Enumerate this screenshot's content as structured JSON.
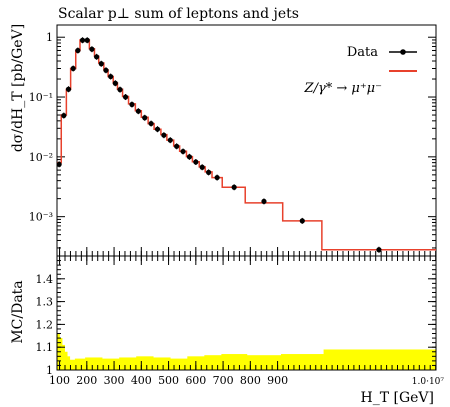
{
  "chart_data": [
    {
      "type": "line",
      "title": "Scalar p⊥ sum of leptons and jets",
      "ylabel": "dσ/dH_T [pb/GeV]",
      "xlabel": "",
      "yscale": "log",
      "ylim": [
        0.00022,
        1.6
      ],
      "xlim": [
        0.006,
        1.0
      ],
      "y_ticks": [
        {
          "value": 1,
          "label": "1"
        },
        {
          "value": 0.1,
          "label": "10⁻¹"
        },
        {
          "value": 0.01,
          "label": "10⁻²"
        },
        {
          "value": 0.001,
          "label": "10⁻³"
        }
      ],
      "legend": {
        "position": "top-right",
        "entries": [
          {
            "label": "Data",
            "color": "#000000",
            "marker": "point-with-error-line"
          },
          {
            "label": "",
            "color": "#e8412c",
            "marker": "line"
          }
        ]
      },
      "annotation": "Z/γ* → μ⁺μ⁻",
      "series": [
        {
          "name": "Data",
          "color": "#000000",
          "points": [
            {
              "x": 0.0095,
              "y": 0.0075
            },
            {
              "x": 0.015,
              "y": 0.049
            },
            {
              "x": 0.0205,
              "y": 0.135
            },
            {
              "x": 0.026,
              "y": 0.3
            },
            {
              "x": 0.0315,
              "y": 0.6
            },
            {
              "x": 0.037,
              "y": 0.89
            },
            {
              "x": 0.0425,
              "y": 0.89
            },
            {
              "x": 0.048,
              "y": 0.63
            },
            {
              "x": 0.0535,
              "y": 0.47
            },
            {
              "x": 0.059,
              "y": 0.36
            },
            {
              "x": 0.0645,
              "y": 0.28
            },
            {
              "x": 0.07,
              "y": 0.22
            },
            {
              "x": 0.0755,
              "y": 0.17
            },
            {
              "x": 0.081,
              "y": 0.133
            },
            {
              "x": 0.0875,
              "y": 0.1
            },
            {
              "x": 0.095,
              "y": 0.075
            },
            {
              "x": 0.1025,
              "y": 0.058
            },
            {
              "x": 0.11,
              "y": 0.045
            },
            {
              "x": 0.1175,
              "y": 0.036
            },
            {
              "x": 0.125,
              "y": 0.029
            },
            {
              "x": 0.1325,
              "y": 0.023
            },
            {
              "x": 0.14,
              "y": 0.019
            },
            {
              "x": 0.1475,
              "y": 0.015
            },
            {
              "x": 0.155,
              "y": 0.0123
            },
            {
              "x": 0.1625,
              "y": 0.01
            },
            {
              "x": 0.17,
              "y": 0.0082
            },
            {
              "x": 0.1775,
              "y": 0.0067
            },
            {
              "x": 0.185,
              "y": 0.0055
            },
            {
              "x": 0.195,
              "y": 0.0045
            },
            {
              "x": 0.215,
              "y": 0.0031
            },
            {
              "x": 0.25,
              "y": 0.0018
            },
            {
              "x": 0.295,
              "y": 0.00085
            },
            {
              "x": 0.385,
              "y": 0.00028
            }
          ]
        },
        {
          "name": "",
          "color": "#e8412c",
          "bins": [
            {
              "x0": 0.007,
              "x1": 0.012,
              "y": 0.008
            },
            {
              "x0": 0.012,
              "x1": 0.018,
              "y": 0.05
            },
            {
              "x0": 0.018,
              "x1": 0.023,
              "y": 0.135
            },
            {
              "x0": 0.023,
              "x1": 0.029,
              "y": 0.3
            },
            {
              "x0": 0.029,
              "x1": 0.034,
              "y": 0.6
            },
            {
              "x0": 0.034,
              "x1": 0.04,
              "y": 0.9
            },
            {
              "x0": 0.04,
              "x1": 0.045,
              "y": 0.9
            },
            {
              "x0": 0.045,
              "x1": 0.051,
              "y": 0.64
            },
            {
              "x0": 0.051,
              "x1": 0.056,
              "y": 0.48
            },
            {
              "x0": 0.056,
              "x1": 0.062,
              "y": 0.37
            },
            {
              "x0": 0.062,
              "x1": 0.067,
              "y": 0.285
            },
            {
              "x0": 0.067,
              "x1": 0.073,
              "y": 0.22
            },
            {
              "x0": 0.073,
              "x1": 0.078,
              "y": 0.172
            },
            {
              "x0": 0.078,
              "x1": 0.084,
              "y": 0.135
            },
            {
              "x0": 0.084,
              "x1": 0.091,
              "y": 0.102
            },
            {
              "x0": 0.091,
              "x1": 0.099,
              "y": 0.077
            },
            {
              "x0": 0.099,
              "x1": 0.106,
              "y": 0.059
            },
            {
              "x0": 0.106,
              "x1": 0.114,
              "y": 0.046
            },
            {
              "x0": 0.114,
              "x1": 0.121,
              "y": 0.036
            },
            {
              "x0": 0.121,
              "x1": 0.129,
              "y": 0.029
            },
            {
              "x0": 0.129,
              "x1": 0.136,
              "y": 0.0235
            },
            {
              "x0": 0.136,
              "x1": 0.144,
              "y": 0.019
            },
            {
              "x0": 0.144,
              "x1": 0.151,
              "y": 0.0152
            },
            {
              "x0": 0.151,
              "x1": 0.159,
              "y": 0.0124
            },
            {
              "x0": 0.159,
              "x1": 0.166,
              "y": 0.0101
            },
            {
              "x0": 0.166,
              "x1": 0.174,
              "y": 0.0083
            },
            {
              "x0": 0.174,
              "x1": 0.181,
              "y": 0.0068
            },
            {
              "x0": 0.181,
              "x1": 0.189,
              "y": 0.0056
            },
            {
              "x0": 0.189,
              "x1": 0.201,
              "y": 0.0045
            },
            {
              "x0": 0.201,
              "x1": 0.228,
              "y": 0.0031
            },
            {
              "x0": 0.228,
              "x1": 0.272,
              "y": 0.0017
            },
            {
              "x0": 0.272,
              "x1": 0.318,
              "y": 0.00085
            },
            {
              "x0": 0.318,
              "x1": 0.452,
              "y": 0.00028
            }
          ]
        }
      ]
    },
    {
      "type": "area",
      "ylabel": "MC/Data",
      "xlabel": "H_T [GeV]",
      "x_multiplier": "1.0·10⁷",
      "ylim": [
        1.0,
        1.5
      ],
      "y_ticks": [
        {
          "value": 1.0,
          "label": "1"
        },
        {
          "value": 1.1,
          "label": "1.1"
        },
        {
          "value": 1.2,
          "label": "1.2"
        },
        {
          "value": 1.3,
          "label": "1.3"
        },
        {
          "value": 1.4,
          "label": "1.4"
        }
      ],
      "x_ticks": [
        {
          "value": 0.01,
          "label": "100"
        },
        {
          "value": 0.042,
          "label": "200"
        },
        {
          "value": 0.074,
          "label": "300"
        },
        {
          "value": 0.106,
          "label": "400"
        },
        {
          "value": 0.138,
          "label": "500"
        },
        {
          "value": 0.17,
          "label": "600"
        },
        {
          "value": 0.202,
          "label": "700"
        },
        {
          "value": 0.234,
          "label": "800"
        },
        {
          "value": 0.266,
          "label": "900"
        }
      ],
      "band_color": "#ffff00",
      "band": [
        {
          "x0": 0.007,
          "x1": 0.01,
          "lo": 1.0,
          "hi": 1.16
        },
        {
          "x0": 0.01,
          "x1": 0.013,
          "lo": 1.0,
          "hi": 1.14
        },
        {
          "x0": 0.013,
          "x1": 0.016,
          "lo": 1.0,
          "hi": 1.11
        },
        {
          "x0": 0.016,
          "x1": 0.019,
          "lo": 1.0,
          "hi": 1.08
        },
        {
          "x0": 0.019,
          "x1": 0.022,
          "lo": 1.0,
          "hi": 1.06
        },
        {
          "x0": 0.022,
          "x1": 0.028,
          "lo": 1.0,
          "hi": 1.045
        },
        {
          "x0": 0.028,
          "x1": 0.04,
          "lo": 1.0,
          "hi": 1.05
        },
        {
          "x0": 0.04,
          "x1": 0.06,
          "lo": 1.0,
          "hi": 1.055
        },
        {
          "x0": 0.06,
          "x1": 0.08,
          "lo": 1.0,
          "hi": 1.05
        },
        {
          "x0": 0.08,
          "x1": 0.1,
          "lo": 1.0,
          "hi": 1.055
        },
        {
          "x0": 0.1,
          "x1": 0.12,
          "lo": 1.0,
          "hi": 1.06
        },
        {
          "x0": 0.12,
          "x1": 0.14,
          "lo": 1.0,
          "hi": 1.055
        },
        {
          "x0": 0.14,
          "x1": 0.16,
          "lo": 1.0,
          "hi": 1.05
        },
        {
          "x0": 0.16,
          "x1": 0.18,
          "lo": 1.0,
          "hi": 1.06
        },
        {
          "x0": 0.18,
          "x1": 0.2,
          "lo": 1.0,
          "hi": 1.065
        },
        {
          "x0": 0.2,
          "x1": 0.23,
          "lo": 1.0,
          "hi": 1.07
        },
        {
          "x0": 0.23,
          "x1": 0.27,
          "lo": 1.0,
          "hi": 1.065
        },
        {
          "x0": 0.27,
          "x1": 0.32,
          "lo": 1.0,
          "hi": 1.07
        },
        {
          "x0": 0.32,
          "x1": 0.452,
          "lo": 1.0,
          "hi": 1.09
        }
      ]
    }
  ]
}
